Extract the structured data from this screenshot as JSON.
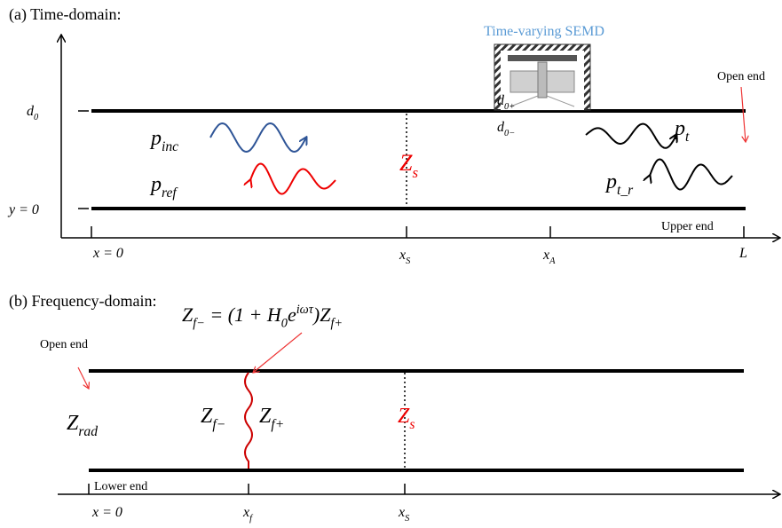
{
  "panel_a": {
    "title": "(a) Time-domain:",
    "device_label": "Time-varying SEMD",
    "open_end": "Open end",
    "upper_end": "Upper end",
    "d0": [
      {
        "t": "d",
        "sub": "0"
      }
    ],
    "y0": [
      {
        "t": "y = 0"
      }
    ],
    "p_inc": [
      {
        "t": "p",
        "sub": "inc"
      }
    ],
    "p_ref": [
      {
        "t": "p",
        "sub": "ref"
      }
    ],
    "z_s": [
      {
        "t": "Z",
        "sub": "s"
      }
    ],
    "d0_plus": [
      {
        "t": "d",
        "sub": "0+"
      }
    ],
    "d0_minus": [
      {
        "t": "d",
        "sub": "0−"
      }
    ],
    "p_t": [
      {
        "t": "p",
        "sub": "t"
      }
    ],
    "p_t_r": [
      {
        "t": "p",
        "sub": "t_r"
      }
    ],
    "x0": [
      {
        "t": "x = 0"
      }
    ],
    "x_s": [
      {
        "t": "x",
        "sub": "S"
      }
    ],
    "x_a": [
      {
        "t": "x",
        "sub": "A"
      }
    ],
    "l": [
      {
        "t": "L"
      }
    ]
  },
  "panel_b": {
    "title": "(b) Frequency-domain:",
    "open_end": "Open end",
    "lower_end": "Lower end",
    "equation": [
      {
        "t": "Z",
        "sub": "f−"
      },
      {
        "t": " = (1 + H",
        "sub": "0"
      },
      {
        "t": "e",
        "sup": "iωτ"
      },
      {
        "t": ")Z",
        "sub": "f+"
      }
    ],
    "z_rad": [
      {
        "t": "Z",
        "sub": "rad"
      }
    ],
    "z_f_minus": [
      {
        "t": "Z",
        "sub": "f−"
      }
    ],
    "z_f_plus": [
      {
        "t": "Z",
        "sub": "f+"
      }
    ],
    "z_s": [
      {
        "t": "Z",
        "sub": "s"
      }
    ],
    "x0": [
      {
        "t": "x = 0"
      }
    ],
    "x_f": [
      {
        "t": "x",
        "sub": "f"
      }
    ],
    "x_s": [
      {
        "t": "x",
        "sub": "S"
      }
    ]
  }
}
